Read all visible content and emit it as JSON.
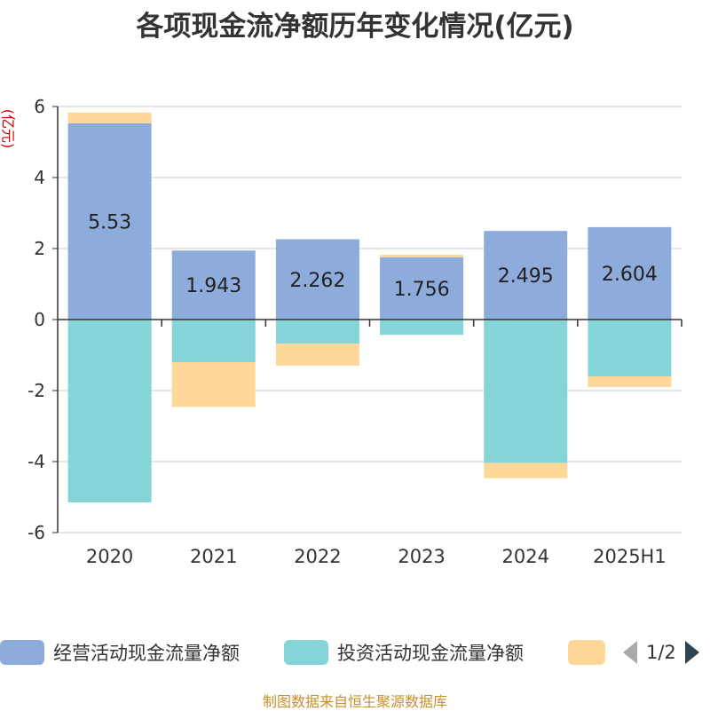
{
  "title": "各项现金流净额历年变化情况(亿元)",
  "unit_label": "(亿元)",
  "source": "制图数据来自恒生聚源数据库",
  "legend": {
    "items": [
      {
        "label": "经营活动现金流量净额",
        "color": "#8eacdb"
      },
      {
        "label": "投资活动现金流量净额",
        "color": "#85d4d8"
      },
      {
        "label": "",
        "color": "#fdd898"
      }
    ],
    "page_text": "1/2"
  },
  "chart_data": {
    "type": "bar",
    "stacked": true,
    "categories": [
      "2020",
      "2021",
      "2022",
      "2023",
      "2024",
      "2025H1"
    ],
    "ylim": [
      -6,
      6
    ],
    "yticks": [
      6,
      4,
      2,
      0,
      -2,
      -4,
      -6
    ],
    "grid": true,
    "legend_position": "bottom",
    "series": [
      {
        "name": "经营活动现金流量净额",
        "color": "#8eacdb",
        "values": [
          5.53,
          1.943,
          2.262,
          1.756,
          2.495,
          2.604
        ],
        "labels": [
          "5.53",
          "1.943",
          "2.262",
          "1.756",
          "2.495",
          "2.604"
        ]
      },
      {
        "name": "投资活动现金流量净额",
        "color": "#85d4d8",
        "values": [
          -5.15,
          -1.2,
          -0.68,
          -0.43,
          -4.04,
          -1.6
        ]
      },
      {
        "color": "#fdd898",
        "values": [
          0.3,
          -1.26,
          -0.62,
          0.07,
          -0.43,
          -0.3
        ]
      }
    ]
  }
}
